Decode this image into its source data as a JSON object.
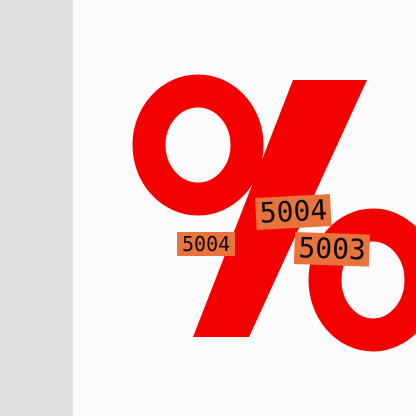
{
  "graphic": {
    "icon": "percent-sign-icon",
    "color": "#f50000"
  },
  "tags": {
    "color": "#e8733c",
    "items": [
      {
        "label": "5004"
      },
      {
        "label": "5004"
      },
      {
        "label": "5003"
      }
    ]
  }
}
